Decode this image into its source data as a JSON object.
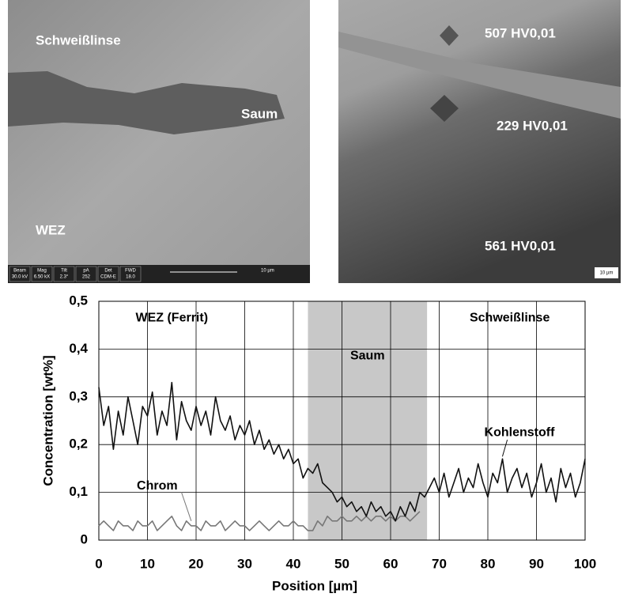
{
  "images": {
    "left": {
      "labels": [
        "Schweißlinse",
        "Saum",
        "WEZ"
      ],
      "databar": [
        [
          "Beam",
          "30.0 kV"
        ],
        [
          "Mag",
          "6.50 kX"
        ],
        [
          "Tilt",
          "2.3°"
        ],
        [
          "pA",
          "252"
        ],
        [
          "Det",
          "CDM-E"
        ],
        [
          "FWD",
          "18.0"
        ]
      ],
      "scale": "10 µm"
    },
    "right": {
      "labels": [
        "507 HV0,01",
        "229 HV0,01",
        "561 HV0,01"
      ],
      "scale": "10 µm"
    }
  },
  "chart_data": {
    "type": "line",
    "x_label": "Position [µm]",
    "y_label": "Concentration [wt%]",
    "xlim": [
      0,
      100
    ],
    "ylim": [
      0,
      0.5
    ],
    "xticks": [
      0,
      10,
      20,
      30,
      40,
      50,
      60,
      70,
      80,
      90,
      100
    ],
    "yticks": [
      0,
      {
        "value": 0.1,
        "label": "0,1"
      },
      {
        "value": 0.2,
        "label": "0,2"
      },
      {
        "value": 0.3,
        "label": "0,3"
      },
      {
        "value": 0.4,
        "label": "0,4"
      },
      {
        "value": 0.5,
        "label": "0,5"
      }
    ],
    "grid": true,
    "highlight": {
      "x": [
        43,
        67.5
      ],
      "label": "Saum",
      "color": "#c8c8c8"
    },
    "annotations": [
      "WEZ (Ferrit)",
      "Schweißlinse"
    ],
    "x": [
      0,
      1,
      2,
      3,
      4,
      5,
      6,
      7,
      8,
      9,
      10,
      11,
      12,
      13,
      14,
      15,
      16,
      17,
      18,
      19,
      20,
      21,
      22,
      23,
      24,
      25,
      26,
      27,
      28,
      29,
      30,
      31,
      32,
      33,
      34,
      35,
      36,
      37,
      38,
      39,
      40,
      41,
      42,
      43,
      44,
      45,
      46,
      47,
      48,
      49,
      50,
      51,
      52,
      53,
      54,
      55,
      56,
      57,
      58,
      59,
      60,
      61,
      62,
      63,
      64,
      65,
      66,
      67,
      68,
      69,
      70,
      71,
      72,
      73,
      74,
      75,
      76,
      77,
      78,
      79,
      80,
      81,
      82,
      83,
      84,
      85,
      86,
      87,
      88,
      89,
      90,
      91,
      92,
      93,
      94,
      95,
      96,
      97,
      98,
      99,
      100
    ],
    "series": [
      {
        "name": "Kohlenstoff",
        "color": "#111111",
        "values": [
          0.32,
          0.24,
          0.28,
          0.19,
          0.27,
          0.22,
          0.3,
          0.25,
          0.2,
          0.28,
          0.26,
          0.31,
          0.22,
          0.27,
          0.24,
          0.33,
          0.21,
          0.29,
          0.25,
          0.23,
          0.28,
          0.24,
          0.27,
          0.22,
          0.3,
          0.25,
          0.23,
          0.26,
          0.21,
          0.24,
          0.22,
          0.25,
          0.2,
          0.23,
          0.19,
          0.21,
          0.18,
          0.2,
          0.17,
          0.19,
          0.16,
          0.17,
          0.13,
          0.15,
          0.14,
          0.16,
          0.12,
          0.11,
          0.1,
          0.08,
          0.09,
          0.07,
          0.08,
          0.06,
          0.07,
          0.05,
          0.08,
          0.06,
          0.07,
          0.05,
          0.06,
          0.04,
          0.07,
          0.05,
          0.08,
          0.06,
          0.1,
          0.09,
          0.11,
          0.13,
          0.1,
          0.14,
          0.09,
          0.12,
          0.15,
          0.1,
          0.13,
          0.11,
          0.16,
          0.12,
          0.09,
          0.14,
          0.12,
          0.17,
          0.1,
          0.13,
          0.15,
          0.11,
          0.14,
          0.09,
          0.12,
          0.16,
          0.1,
          0.13,
          0.08,
          0.15,
          0.11,
          0.14,
          0.09,
          0.12,
          0.17
        ]
      },
      {
        "name": "Chrom",
        "color": "#777777",
        "values": [
          0.03,
          0.04,
          0.03,
          0.02,
          0.04,
          0.03,
          0.03,
          0.02,
          0.04,
          0.03,
          0.03,
          0.04,
          0.02,
          0.03,
          0.04,
          0.05,
          0.03,
          0.02,
          0.04,
          0.03,
          0.03,
          0.02,
          0.04,
          0.03,
          0.03,
          0.04,
          0.02,
          0.03,
          0.04,
          0.03,
          0.03,
          0.02,
          0.03,
          0.04,
          0.03,
          0.02,
          0.03,
          0.04,
          0.03,
          0.03,
          0.04,
          0.03,
          0.03,
          0.02,
          0.02,
          0.04,
          0.03,
          0.05,
          0.04,
          0.04,
          0.05,
          0.04,
          0.04,
          0.05,
          0.04,
          0.05,
          0.04,
          0.05,
          0.05,
          0.04,
          0.05,
          0.04,
          0.05,
          0.05,
          0.04,
          0.05,
          0.06,
          null,
          null,
          null,
          null,
          null,
          null,
          null,
          null,
          null,
          null,
          null,
          null,
          null,
          null,
          null,
          null,
          null,
          null,
          null,
          null,
          null,
          null,
          null,
          null,
          null,
          null,
          null,
          null,
          null,
          null,
          null,
          null,
          null,
          null
        ]
      }
    ]
  }
}
